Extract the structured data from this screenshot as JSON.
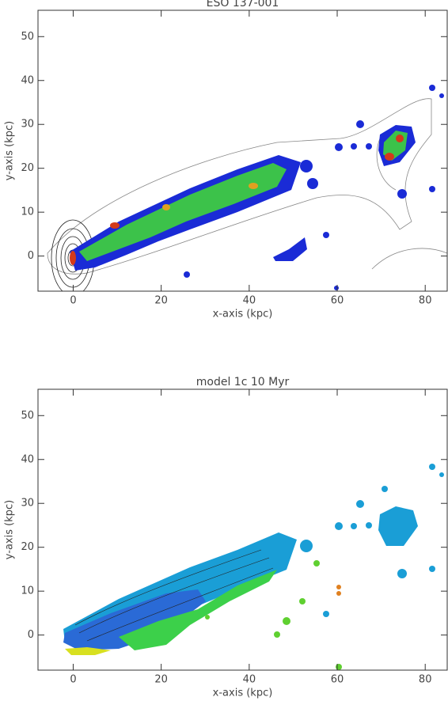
{
  "chart_data": [
    {
      "type": "image",
      "title": "ESO 137-001",
      "xlabel": "x-axis (kpc)",
      "ylabel": "y-axis (kpc)",
      "xlim": [
        -8,
        85
      ],
      "ylim": [
        -8,
        56
      ],
      "xticks": [
        0,
        20,
        40,
        60,
        80
      ],
      "yticks": [
        0,
        10,
        20,
        30,
        40,
        50
      ]
    },
    {
      "type": "image",
      "title": "model 1c   10 Myr",
      "xlabel": "x-axis (kpc)",
      "ylabel": "y-axis (kpc)",
      "xlim": [
        -8,
        85
      ],
      "ylim": [
        -8,
        56
      ],
      "xticks": [
        0,
        20,
        40,
        60,
        80
      ],
      "yticks": [
        0,
        10,
        20,
        30,
        40,
        50
      ]
    }
  ]
}
